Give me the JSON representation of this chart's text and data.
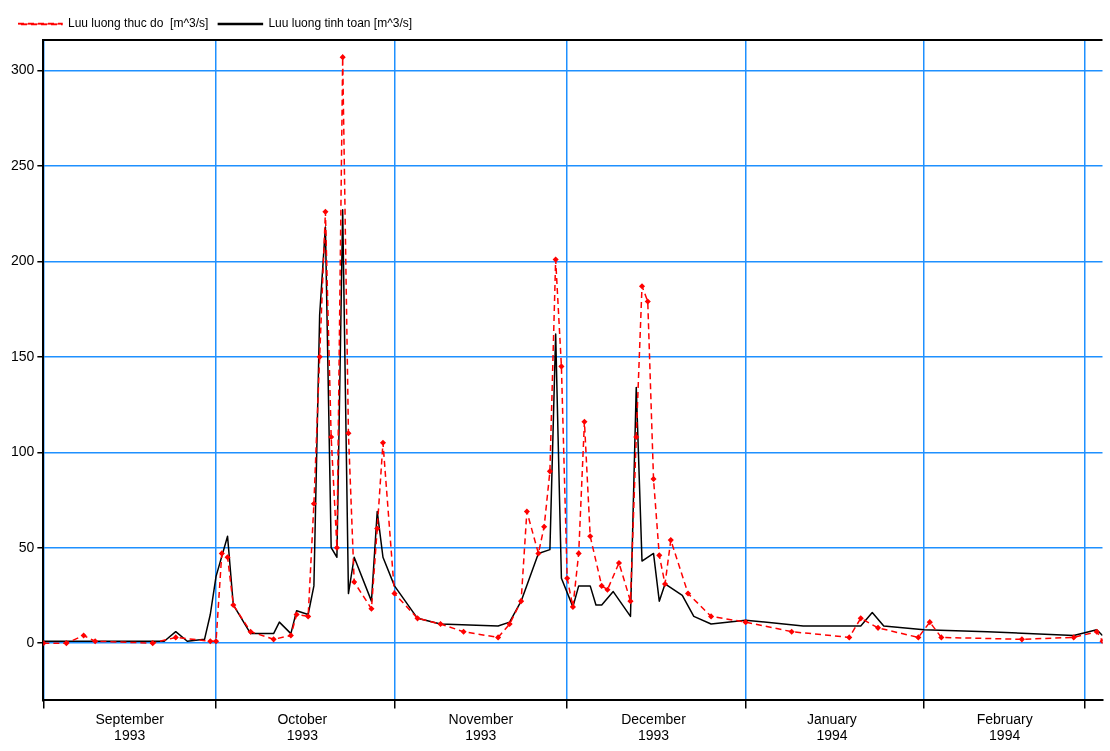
{
  "chart_data": {
    "type": "line",
    "xlim": [
      "1993-09-01",
      "1994-03-04"
    ],
    "xticks": [
      {
        "value": "1993-09-01",
        "label": null
      },
      {
        "value": "1993-09-16",
        "label": "September 1993"
      },
      {
        "value": "1993-10-01",
        "label": null
      },
      {
        "value": "1993-10-16",
        "label": "October 1993"
      },
      {
        "value": "1993-11-01",
        "label": null
      },
      {
        "value": "1993-11-16",
        "label": "November 1993"
      },
      {
        "value": "1993-12-01",
        "label": null
      },
      {
        "value": "1993-12-16",
        "label": "December 1993"
      },
      {
        "value": "1994-01-01",
        "label": null
      },
      {
        "value": "1994-01-16",
        "label": "January 1994"
      },
      {
        "value": "1994-02-01",
        "label": null
      },
      {
        "value": "1994-02-15",
        "label": "February 1994"
      },
      {
        "value": "1994-03-01",
        "label": null
      }
    ],
    "ylim": [
      -30,
      316
    ],
    "yticks": [
      0,
      50,
      100,
      150,
      200,
      250,
      300
    ],
    "grid": true,
    "legend": "top left",
    "series": [
      {
        "name": "Luu luong thuc do  [m^3/s]",
        "color": "#ff0000",
        "line_style": "dashed",
        "marker": "diamond",
        "x": [
          "1993-09-01",
          "1993-09-05",
          "1993-09-08",
          "1993-09-10",
          "1993-09-20",
          "1993-09-24",
          "1993-09-30",
          "1993-10-01",
          "1993-10-02",
          "1993-10-03",
          "1993-10-04",
          "1993-10-07",
          "1993-10-11",
          "1993-10-14",
          "1993-10-15",
          "1993-10-17",
          "1993-10-18",
          "1993-10-19",
          "1993-10-20",
          "1993-10-21",
          "1993-10-22",
          "1993-10-23",
          "1993-10-24",
          "1993-10-25",
          "1993-10-28",
          "1993-10-29",
          "1993-10-30",
          "1993-11-01",
          "1993-11-05",
          "1993-11-09",
          "1993-11-13",
          "1993-11-19",
          "1993-11-21",
          "1993-11-23",
          "1993-11-24",
          "1993-11-26",
          "1993-11-27",
          "1993-11-28",
          "1993-11-29",
          "1993-11-30",
          "1993-12-01",
          "1993-12-02",
          "1993-12-03",
          "1993-12-04",
          "1993-12-05",
          "1993-12-07",
          "1993-12-08",
          "1993-12-10",
          "1993-12-12",
          "1993-12-13",
          "1993-12-14",
          "1993-12-15",
          "1993-12-16",
          "1993-12-17",
          "1993-12-18",
          "1993-12-19",
          "1993-12-22",
          "1993-12-26",
          "1994-01-01",
          "1994-01-09",
          "1994-01-19",
          "1994-01-21",
          "1994-01-24",
          "1994-01-31",
          "1994-02-02",
          "1994-02-04",
          "1994-02-18",
          "1994-02-27",
          "1994-03-03",
          "1994-03-04"
        ],
        "values": [
          0,
          0,
          4,
          1,
          0,
          3,
          1,
          1,
          47,
          45,
          20,
          6,
          2,
          4,
          15,
          14,
          73,
          150,
          226,
          108,
          50,
          307,
          110,
          32,
          18,
          60,
          105,
          26,
          13,
          10,
          6,
          3,
          10,
          22,
          69,
          47,
          61,
          90,
          201,
          145,
          34,
          19,
          47,
          116,
          56,
          30,
          28,
          42,
          22,
          108,
          187,
          179,
          86,
          46,
          31,
          54,
          26,
          14,
          11,
          6,
          3,
          13,
          8,
          3,
          11,
          3,
          2,
          3,
          6,
          1
        ]
      },
      {
        "name": "Luu luong tinh toan [m^3/s]",
        "color": "#000000",
        "line_style": "solid",
        "marker": "none",
        "x": [
          "1993-09-01",
          "1993-09-22",
          "1993-09-24",
          "1993-09-26",
          "1993-09-29",
          "1993-09-30",
          "1993-10-01",
          "1993-10-03",
          "1993-10-04",
          "1993-10-07",
          "1993-10-11",
          "1993-10-12",
          "1993-10-14",
          "1993-10-15",
          "1993-10-17",
          "1993-10-18",
          "1993-10-19",
          "1993-10-20",
          "1993-10-21",
          "1993-10-22",
          "1993-10-23",
          "1993-10-24",
          "1993-10-25",
          "1993-10-28",
          "1993-10-29",
          "1993-10-30",
          "1993-11-01",
          "1993-11-05",
          "1993-11-09",
          "1993-11-19",
          "1993-11-21",
          "1993-11-23",
          "1993-11-26",
          "1993-11-28",
          "1993-11-29",
          "1993-11-30",
          "1993-12-02",
          "1993-12-03",
          "1993-12-05",
          "1993-12-06",
          "1993-12-07",
          "1993-12-09",
          "1993-12-12",
          "1993-12-13",
          "1993-12-14",
          "1993-12-16",
          "1993-12-17",
          "1993-12-18",
          "1993-12-21",
          "1993-12-23",
          "1993-12-26",
          "1994-01-01",
          "1994-01-11",
          "1994-01-21",
          "1994-01-23",
          "1994-01-25",
          "1994-02-01",
          "1994-02-12",
          "1994-02-27",
          "1994-03-03",
          "1994-03-04"
        ],
        "values": [
          1,
          1,
          6,
          1,
          2,
          15,
          35,
          56,
          20,
          5,
          5,
          11,
          5,
          17,
          15,
          30,
          172,
          218,
          50,
          45,
          227,
          26,
          45,
          22,
          69,
          45,
          30,
          13,
          10,
          9,
          11,
          22,
          47,
          49,
          162,
          34,
          19,
          30,
          30,
          20,
          20,
          27,
          14,
          134,
          43,
          47,
          22,
          31,
          25,
          14,
          10,
          12,
          9,
          9,
          16,
          9,
          7,
          6,
          4,
          7,
          4
        ]
      }
    ]
  }
}
